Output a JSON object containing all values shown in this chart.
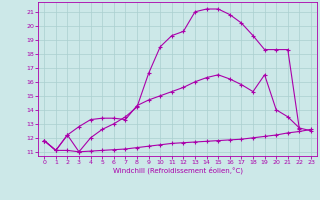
{
  "xlabel": "Windchill (Refroidissement éolien,°C)",
  "background_color": "#cce8e8",
  "line_color": "#aa00aa",
  "grid_color": "#aacfcf",
  "xlim": [
    -0.5,
    23.5
  ],
  "ylim": [
    10.7,
    21.7
  ],
  "yticks": [
    11,
    12,
    13,
    14,
    15,
    16,
    17,
    18,
    19,
    20,
    21
  ],
  "xticks": [
    0,
    1,
    2,
    3,
    4,
    5,
    6,
    7,
    8,
    9,
    10,
    11,
    12,
    13,
    14,
    15,
    16,
    17,
    18,
    19,
    20,
    21,
    22,
    23
  ],
  "line1_x": [
    0,
    1,
    2,
    3,
    4,
    5,
    6,
    7,
    8,
    9,
    10,
    11,
    12,
    13,
    14,
    15,
    16,
    17,
    18,
    19,
    20,
    21,
    22,
    23
  ],
  "line1_y": [
    11.8,
    11.1,
    11.1,
    11.0,
    11.05,
    11.1,
    11.15,
    11.2,
    11.3,
    11.4,
    11.5,
    11.6,
    11.65,
    11.7,
    11.75,
    11.8,
    11.85,
    11.9,
    12.0,
    12.1,
    12.2,
    12.35,
    12.45,
    12.6
  ],
  "line2_x": [
    0,
    1,
    2,
    3,
    4,
    5,
    6,
    7,
    8,
    9,
    10,
    11,
    12,
    13,
    14,
    15,
    16,
    17,
    18,
    19,
    20,
    21,
    22,
    23
  ],
  "line2_y": [
    11.8,
    11.1,
    12.2,
    12.8,
    13.3,
    13.4,
    13.4,
    13.3,
    14.3,
    14.7,
    15.0,
    15.3,
    15.6,
    16.0,
    16.3,
    16.5,
    16.2,
    15.8,
    15.3,
    16.5,
    14.0,
    13.5,
    12.7,
    12.5
  ],
  "line3_x": [
    0,
    1,
    2,
    3,
    4,
    5,
    6,
    7,
    8,
    9,
    10,
    11,
    12,
    13,
    14,
    15,
    16,
    17,
    18,
    19,
    20,
    21,
    22
  ],
  "line3_y": [
    11.8,
    11.1,
    12.2,
    11.0,
    12.0,
    12.6,
    13.0,
    13.5,
    14.2,
    16.6,
    18.5,
    19.3,
    19.6,
    21.0,
    21.2,
    21.2,
    20.8,
    20.2,
    19.3,
    18.3,
    18.3,
    18.3,
    12.6
  ]
}
